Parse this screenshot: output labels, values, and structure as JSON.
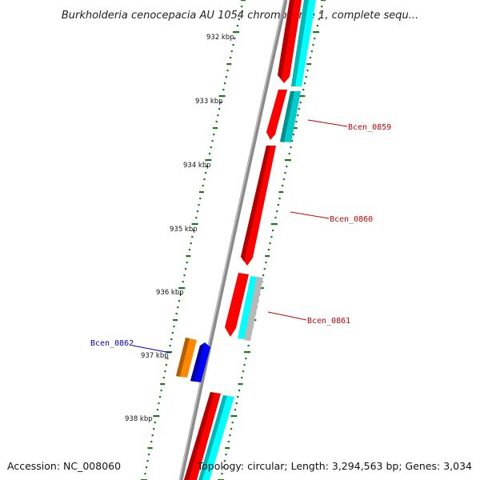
{
  "title": "Burkholderia cenocepacia AU 1054 chromosome 1, complete sequ...",
  "footer": {
    "accession": "Accession: NC_008060",
    "summary": "Topology: circular; Length: 3,294,563 bp; Genes: 3,034"
  },
  "colors": {
    "backbone": "#888888",
    "forward_cds": "#ff0000",
    "reverse_cds": "#00ffff",
    "reverse_cds_dark": "#00bbbb",
    "rna_gene": "#ff8800",
    "other_gene": "#0000ff",
    "pseudo": "#bbbbbb",
    "tick": "#1a7a1a",
    "label_forward": "#cc0000",
    "label_other": "#0000cc"
  },
  "scale_labels": [
    "932 kbp",
    "933 kbp",
    "934 kbp",
    "935 kbp",
    "936 kbp",
    "937 kbp",
    "938 kbp"
  ],
  "gene_labels": [
    {
      "id": "bcen0859",
      "text": "Bcen_0859",
      "color": "#cc0000"
    },
    {
      "id": "bcen0860",
      "text": "Bcen_0860",
      "color": "#cc0000"
    },
    {
      "id": "bcen0861",
      "text": "Bcen_0861",
      "color": "#cc0000"
    },
    {
      "id": "bcen0862",
      "text": "Bcen_0862",
      "color": "#0000cc"
    }
  ]
}
